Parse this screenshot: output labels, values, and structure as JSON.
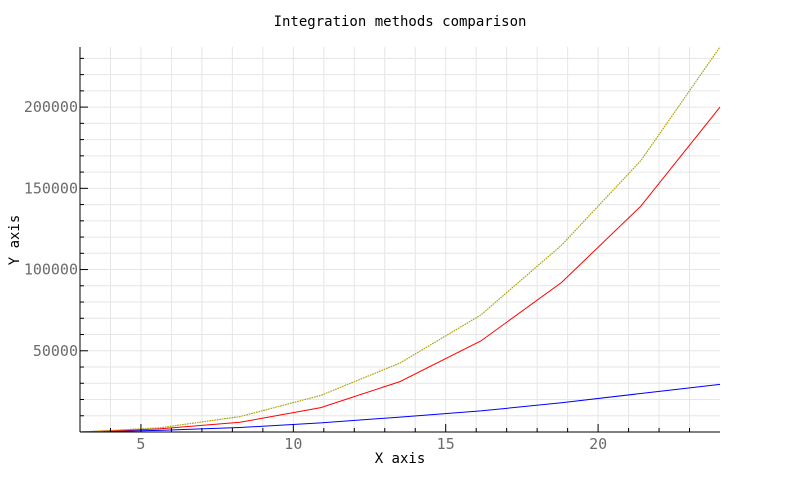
{
  "chart_data": {
    "type": "line",
    "title": "Integration methods comparison",
    "xlabel": "X axis",
    "ylabel": "Y axis",
    "xlim": [
      3,
      24
    ],
    "ylim": [
      0,
      237000
    ],
    "x_ticks": [
      5,
      10,
      15,
      20
    ],
    "y_ticks": [
      50000,
      100000,
      150000,
      200000
    ],
    "grid": true,
    "legend": "none",
    "series": [
      {
        "color": "#0000ff",
        "style": "solid",
        "x": [
          3,
          5.6,
          8.25,
          10.9,
          13.5,
          16.15,
          18.8,
          21.4,
          24
        ],
        "y": [
          0,
          1000,
          2800,
          5600,
          9200,
          13000,
          18000,
          23700,
          29300
        ]
      },
      {
        "color": "#ff0000",
        "style": "solid",
        "x": [
          3,
          5.6,
          8.25,
          10.9,
          13.5,
          16.15,
          18.8,
          21.4,
          24
        ],
        "y": [
          0,
          1900,
          6000,
          15000,
          31000,
          56000,
          92000,
          139000,
          200000
        ]
      },
      {
        "color": "#00aa00",
        "style": "dotted",
        "x": [
          3,
          5.6,
          8.25,
          10.9,
          13.5,
          16.15,
          18.8,
          21.4,
          24
        ],
        "y": [
          0,
          2500,
          9500,
          22500,
          42500,
          72000,
          115000,
          167000,
          237000
        ]
      },
      {
        "color": "#d4a000",
        "style": "dotted",
        "x": [
          3,
          5.6,
          8.25,
          10.9,
          13.5,
          16.15,
          18.8,
          21.4,
          24
        ],
        "y": [
          0,
          2500,
          9500,
          22500,
          42500,
          72000,
          115000,
          167000,
          237000
        ]
      }
    ]
  }
}
